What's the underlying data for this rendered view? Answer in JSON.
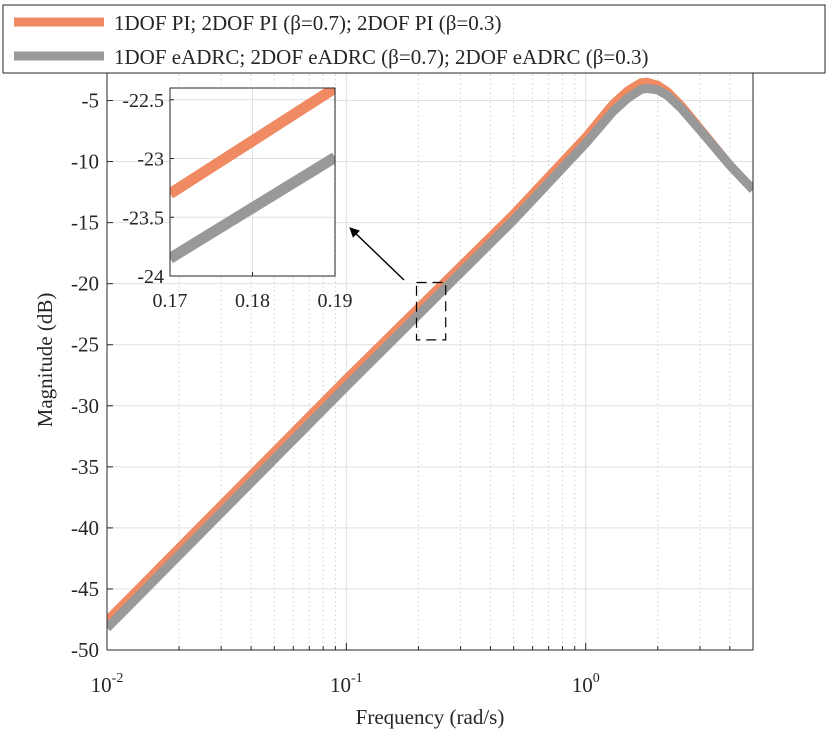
{
  "chart_data": {
    "type": "line",
    "xscale": "log",
    "xlabel": "Frequency (rad/s)",
    "ylabel": "Magnitude (dB)",
    "xlim": [
      0.01,
      5
    ],
    "ylim": [
      -50,
      -2.5
    ],
    "grid": true,
    "x_ticks": [
      {
        "base": "10",
        "exp": "-2",
        "value": 0.01
      },
      {
        "base": "10",
        "exp": "-1",
        "value": 0.1
      },
      {
        "base": "10",
        "exp": "0",
        "value": 1
      }
    ],
    "y_ticks": [
      "-5",
      "-10",
      "-15",
      "-20",
      "-25",
      "-30",
      "-35",
      "-40",
      "-45",
      "-50"
    ],
    "legend_position": "top",
    "series": [
      {
        "name": "1DOF PI; 2DOF PI (β=0.7); 2DOF PI (β=0.3)",
        "color": "#ef8a62",
        "x": [
          0.01,
          0.1,
          0.5,
          1.0,
          1.3,
          1.5,
          1.7,
          1.8,
          2.0,
          2.2,
          2.5,
          3.0,
          4.0,
          5.0
        ],
        "y": [
          -47.6,
          -27.8,
          -14.3,
          -8.0,
          -5.3,
          -4.2,
          -3.55,
          -3.5,
          -3.75,
          -4.3,
          -5.4,
          -7.3,
          -10.3,
          -12.3
        ]
      },
      {
        "name": "1DOF eADRC; 2DOF eADRC (β=0.7); 2DOF eADRC (β=0.3)",
        "color": "#999999",
        "x": [
          0.01,
          0.1,
          0.5,
          1.0,
          1.3,
          1.5,
          1.7,
          1.8,
          2.0,
          2.2,
          2.5,
          3.0,
          4.0,
          5.0
        ],
        "y": [
          -48.2,
          -28.4,
          -14.8,
          -8.5,
          -5.9,
          -4.8,
          -4.1,
          -4.0,
          -4.15,
          -4.6,
          -5.6,
          -7.4,
          -10.3,
          -12.3
        ]
      }
    ],
    "inset": {
      "xlim": [
        0.17,
        0.19
      ],
      "ylim": [
        -24,
        -22.4
      ],
      "x_ticks": [
        "0.17",
        "0.18",
        "0.19"
      ],
      "y_ticks": [
        "-22.5",
        "-23",
        "-23.5",
        "-24"
      ],
      "series": [
        {
          "name": "PI",
          "x": [
            0.17,
            0.19
          ],
          "y": [
            -23.3,
            -22.4
          ]
        },
        {
          "name": "eADRC",
          "x": [
            0.17,
            0.19
          ],
          "y": [
            -23.85,
            -22.99
          ]
        }
      ],
      "zoom_region": {
        "xlim": [
          0.17,
          0.19
        ],
        "ylim": [
          -24,
          -22.4
        ]
      }
    }
  }
}
